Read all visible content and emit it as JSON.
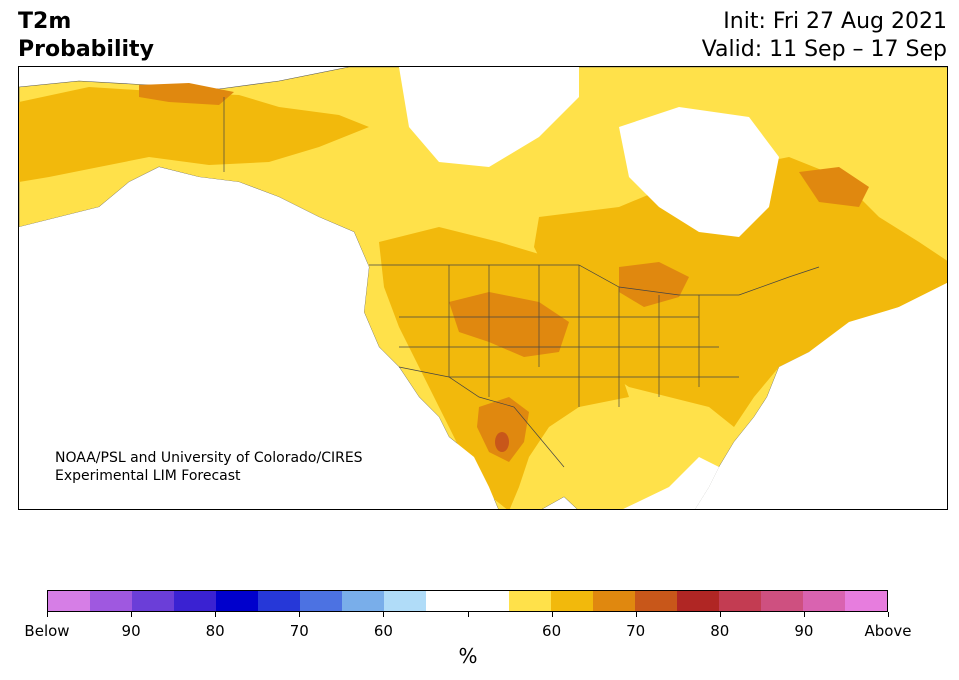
{
  "header": {
    "variable": "T2m",
    "product": "Probability",
    "init": "Init: Fri 27 Aug 2021",
    "valid": "Valid: 11 Sep – 17 Sep"
  },
  "map": {
    "region": "North America",
    "credit_line1": "NOAA/PSL and University of Colorado/CIRES",
    "credit_line2": "Experimental LIM Forecast"
  },
  "legend": {
    "unit": "%",
    "colors": [
      "#d67ee6",
      "#9f58e0",
      "#6b3ed8",
      "#3a22d2",
      "#0000cc",
      "#2638d8",
      "#4c72e2",
      "#79aeea",
      "#b0dcf8",
      "#ffffff",
      "#ffffff",
      "#ffe14a",
      "#f2b90c",
      "#e0880f",
      "#c8571a",
      "#b02624",
      "#c33c52",
      "#ce5080",
      "#d963b0",
      "#e77dde"
    ],
    "tick_labels": [
      "Below",
      "90",
      "80",
      "70",
      "60",
      "",
      "60",
      "70",
      "80",
      "90",
      "Above"
    ]
  }
}
